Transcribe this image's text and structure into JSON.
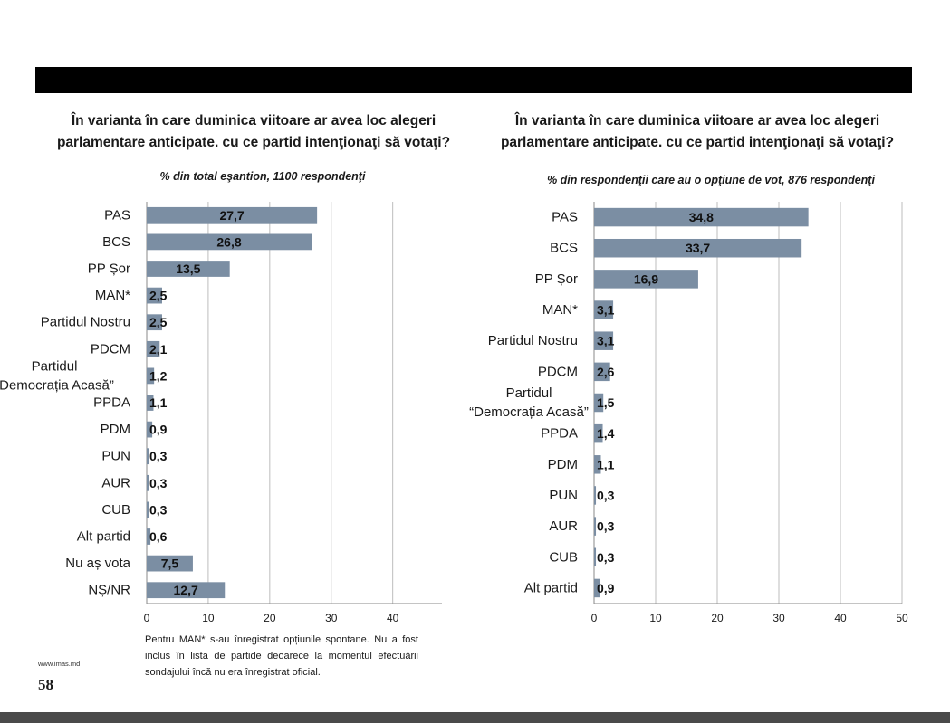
{
  "page": {
    "site": "www.imas.md",
    "page_number": "58"
  },
  "footnote": "Pentru MAN* s-au înregistrat opțiunile spontane. Nu a fost inclus în lista de partide deoarece la momentul efectuării sondajului încă nu era înregistrat oficial.",
  "colors": {
    "bar": "#7b8ea3",
    "grid": "#bdbdbd",
    "header_bar": "#000000"
  },
  "chart_data": [
    {
      "type": "bar",
      "orientation": "horizontal",
      "title": "În varianta în care duminica viitoare ar avea loc alegeri parlamentare anticipate. cu ce partid intenţionaţi să votaţi?",
      "subtitle": "% din total eşantion, 1100 respondenţi",
      "categories": [
        "PAS",
        "BCS",
        "PP Șor",
        "MAN*",
        "Partidul Nostru",
        "PDCM",
        "Partidul “Democrația Acasă”",
        "PPDA",
        "PDM",
        "PUN",
        "AUR",
        "CUB",
        "Alt partid",
        "Nu aș vota",
        "NȘ/NR"
      ],
      "values": [
        27.7,
        26.8,
        13.5,
        2.5,
        2.5,
        2.1,
        1.2,
        1.1,
        0.9,
        0.3,
        0.3,
        0.3,
        0.6,
        7.5,
        12.7
      ],
      "value_labels": [
        "27,7",
        "26,8",
        "13,5",
        "2,5",
        "2,5",
        "2,1",
        "1,2",
        "1,1",
        "0,9",
        "0,3",
        "0,3",
        "0,3",
        "0,6",
        "7,5",
        "12,7"
      ],
      "xlim": [
        0,
        48
      ],
      "xticks": [
        0,
        10,
        20,
        30,
        40
      ],
      "grid": true
    },
    {
      "type": "bar",
      "orientation": "horizontal",
      "title": "În varianta în care duminica viitoare ar avea loc alegeri parlamentare anticipate. cu ce partid intenţionaţi să votaţi?",
      "subtitle": "% din respondenţii care au o opţiune de vot, 876 respondenţi",
      "categories": [
        "PAS",
        "BCS",
        "PP Șor",
        "MAN*",
        "Partidul Nostru",
        "PDCM",
        "Partidul “Democrația Acasă”",
        "PPDA",
        "PDM",
        "PUN",
        "AUR",
        "CUB",
        "Alt partid"
      ],
      "values": [
        34.8,
        33.7,
        16.9,
        3.1,
        3.1,
        2.6,
        1.5,
        1.4,
        1.1,
        0.3,
        0.3,
        0.3,
        0.9
      ],
      "value_labels": [
        "34,8",
        "33,7",
        "16,9",
        "3,1",
        "3,1",
        "2,6",
        "1,5",
        "1,4",
        "1,1",
        "0,3",
        "0,3",
        "0,3",
        "0,9"
      ],
      "xlim": [
        0,
        50
      ],
      "xticks": [
        0,
        10,
        20,
        30,
        40,
        50
      ],
      "grid": true
    }
  ]
}
